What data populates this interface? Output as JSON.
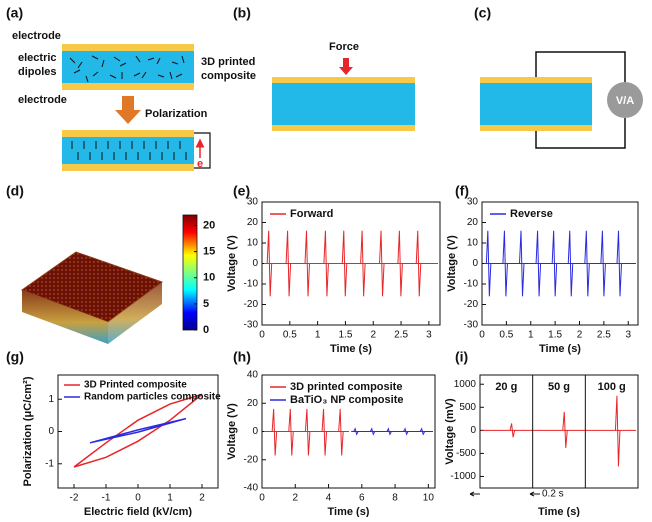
{
  "panel_labels": [
    "(a)",
    "(b)",
    "(c)",
    "(d)",
    "(e)",
    "(f)",
    "(g)",
    "(h)",
    "(i)"
  ],
  "diagram_a": {
    "top_electrode": "electrode",
    "dipoles": [
      "electric",
      "dipoles"
    ],
    "composite": [
      "3D printed",
      "composite"
    ],
    "bottom_electrode": "electrode",
    "process": "Polarization",
    "charge": "e"
  },
  "diagram_b": {
    "force": "Force"
  },
  "diagram_c": {
    "meter": "V/A"
  },
  "chart_data": [
    {
      "type": "colorbar",
      "ylim": [
        0,
        22
      ],
      "yticks": [
        0,
        5,
        10,
        15,
        20
      ]
    },
    {
      "type": "spikes",
      "xlabel": "Time (s)",
      "ylabel": "Voltage (V)",
      "xlim": [
        0,
        3.2
      ],
      "ylim": [
        -30,
        30
      ],
      "xticks": [
        0,
        0.5,
        1,
        1.5,
        2,
        2.5,
        3
      ],
      "yticks": [
        -30,
        -20,
        -10,
        0,
        10,
        20,
        30
      ],
      "series": [
        {
          "name": "Forward",
          "color": "#e8262a",
          "x": [
            0.12,
            0.46,
            0.8,
            1.14,
            1.47,
            1.8,
            2.14,
            2.47,
            2.8
          ],
          "peaks": [
            16,
            16,
            16,
            16,
            16,
            16,
            16,
            16,
            16
          ],
          "troughs": [
            -16,
            -16,
            -16,
            -16,
            -16,
            -16,
            -16,
            -16,
            -16
          ]
        }
      ]
    },
    {
      "type": "spikes",
      "xlabel": "Time (s)",
      "ylabel": "Voltage (V)",
      "xlim": [
        0,
        3.2
      ],
      "ylim": [
        -30,
        30
      ],
      "xticks": [
        0,
        0.5,
        1,
        1.5,
        2,
        2.5,
        3
      ],
      "yticks": [
        -30,
        -20,
        -10,
        0,
        10,
        20,
        30
      ],
      "series": [
        {
          "name": "Reverse",
          "color": "#2a2ae0",
          "x": [
            0.12,
            0.46,
            0.8,
            1.14,
            1.47,
            1.8,
            2.14,
            2.47,
            2.8
          ],
          "peaks": [
            16,
            16,
            16,
            16,
            16,
            16,
            16,
            16,
            16
          ],
          "troughs": [
            -16,
            -16,
            -16,
            -16,
            -16,
            -16,
            -16,
            -16,
            -16
          ]
        }
      ]
    },
    {
      "type": "loop",
      "xlabel": "Electric field (kV/cm)",
      "ylabel": "Polarization (μC/cm²)",
      "xlim": [
        -2.5,
        2.5
      ],
      "ylim": [
        -1.75,
        1.75
      ],
      "xticks": [
        -2,
        -1,
        0,
        1,
        2
      ],
      "yticks": [
        -1,
        0,
        1
      ],
      "series": [
        {
          "name": "3D Printed composite",
          "color": "#e8262a",
          "x": [
            -2,
            -1,
            0,
            1,
            2,
            1,
            0,
            -1,
            -2
          ],
          "values": [
            -1.1,
            -0.35,
            0.35,
            0.85,
            1.15,
            0.35,
            -0.3,
            -0.8,
            -1.1
          ]
        },
        {
          "name": "Random particles composite",
          "color": "#2a2ae0",
          "x": [
            -1.5,
            0,
            1.5,
            0,
            -1.5
          ],
          "values": [
            -0.35,
            0.05,
            0.4,
            -0.02,
            -0.35
          ]
        }
      ]
    },
    {
      "type": "spikes",
      "xlabel": "Time (s)",
      "ylabel": "Voltage (V)",
      "xlim": [
        0,
        10.4
      ],
      "ylim": [
        -40,
        40
      ],
      "xticks": [
        0,
        2,
        4,
        6,
        8,
        10
      ],
      "yticks": [
        -40,
        -20,
        0,
        20,
        40
      ],
      "series": [
        {
          "name": "3D printed composite",
          "color": "#e8262a",
          "x": [
            0.7,
            1.7,
            2.7,
            3.7,
            4.7
          ],
          "peaks": [
            16,
            16,
            16,
            16,
            16
          ],
          "troughs": [
            -17,
            -17,
            -17,
            -17,
            -17
          ]
        },
        {
          "name": "BaTiO₃ NP composite",
          "color": "#2a2ae0",
          "x": [
            5.6,
            6.6,
            7.6,
            8.6,
            9.6
          ],
          "peaks": [
            2,
            2,
            2,
            2,
            2
          ],
          "troughs": [
            -2,
            -2,
            -2,
            -2,
            -2
          ]
        }
      ]
    },
    {
      "type": "sections",
      "xlabel": "Time (s)",
      "ylabel": "Voltage (mV)",
      "ylim": [
        -1250,
        1200
      ],
      "yticks": [
        -1000,
        -500,
        0,
        500,
        1000
      ],
      "scale_bar": "0.2 s",
      "categories": [
        "20 g",
        "50 g",
        "100 g"
      ],
      "color": "#e8262a",
      "peaks": [
        150,
        400,
        750
      ],
      "troughs": [
        -150,
        -380,
        -780
      ]
    }
  ]
}
